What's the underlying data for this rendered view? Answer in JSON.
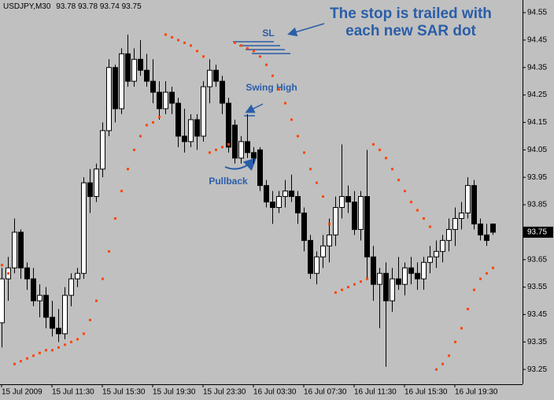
{
  "chart_data": {
    "type": "candlestick",
    "symbol": "USDJPY,M30",
    "categories": [
      "15 Jul 2009",
      null,
      null,
      null,
      null,
      null,
      null,
      null,
      "15 Jul 11:30",
      null,
      null,
      null,
      null,
      null,
      null,
      null,
      "15 Jul 15:30",
      null,
      null,
      null,
      null,
      null,
      null,
      null,
      "15 Jul 19:30",
      null,
      null,
      null,
      null,
      null,
      null,
      null,
      "15 Jul 23:30",
      null,
      null,
      null,
      null,
      null,
      null,
      null,
      "16 Jul 03:30",
      null,
      null,
      null,
      null,
      null,
      null,
      null,
      "16 Jul 07:30",
      null,
      null,
      null,
      null,
      null,
      null,
      null,
      "16 Jul 11:30",
      null,
      null,
      null,
      null,
      null,
      null,
      null,
      "16 Jul 15:30",
      null,
      null,
      null,
      null,
      null,
      null,
      null,
      "16 Jul 19:30",
      null,
      null,
      null,
      null,
      null,
      null
    ],
    "open": [
      93.42,
      93.58,
      93.62,
      93.75,
      93.62,
      93.58,
      93.5,
      93.52,
      93.44,
      93.4,
      93.38,
      93.52,
      93.58,
      93.6,
      93.93,
      93.88,
      93.98,
      94.12,
      94.35,
      94.2,
      94.4,
      94.3,
      94.38,
      94.34,
      94.3,
      94.26,
      94.2,
      94.26,
      94.22,
      94.1,
      94.08,
      94.16,
      94.1,
      94.28,
      94.34,
      94.3,
      94.22,
      94.14,
      94.02,
      94.08,
      94.04,
      94.05,
      93.92,
      93.86,
      93.84,
      93.88,
      93.9,
      93.88,
      93.82,
      93.72,
      93.6,
      93.66,
      93.7,
      93.74,
      93.84,
      93.88,
      93.86,
      93.76,
      93.88,
      93.66,
      93.56,
      93.6,
      93.5,
      93.58,
      93.56,
      93.62,
      93.6,
      93.58,
      93.64,
      93.66,
      93.68,
      93.72,
      93.76,
      93.8,
      93.82,
      93.92,
      93.78,
      93.74,
      93.78
    ],
    "high": [
      93.62,
      93.66,
      93.8,
      93.76,
      93.64,
      93.62,
      93.56,
      93.55,
      93.5,
      93.47,
      93.55,
      93.6,
      93.62,
      93.95,
      93.98,
      94.0,
      94.15,
      94.38,
      94.36,
      94.42,
      94.47,
      94.42,
      94.45,
      94.4,
      94.38,
      94.3,
      94.3,
      94.28,
      94.24,
      94.2,
      94.18,
      94.18,
      94.3,
      94.38,
      94.36,
      94.32,
      94.24,
      94.16,
      94.1,
      94.18,
      94.06,
      94.06,
      93.94,
      93.9,
      93.9,
      93.94,
      93.96,
      93.9,
      93.84,
      93.74,
      93.68,
      93.74,
      93.8,
      93.88,
      94.07,
      93.92,
      93.9,
      93.9,
      94.05,
      93.7,
      93.62,
      93.64,
      93.62,
      93.66,
      93.64,
      93.66,
      93.64,
      93.66,
      93.7,
      93.72,
      93.74,
      93.8,
      93.84,
      93.86,
      93.95,
      93.94,
      93.8,
      93.78,
      93.78
    ],
    "low": [
      93.33,
      93.5,
      93.6,
      93.58,
      93.54,
      93.48,
      93.44,
      93.4,
      93.37,
      93.35,
      93.36,
      93.48,
      93.55,
      93.58,
      93.82,
      93.86,
      93.95,
      94.1,
      94.15,
      94.18,
      94.28,
      94.28,
      94.32,
      94.28,
      94.22,
      94.16,
      94.18,
      94.18,
      94.06,
      94.04,
      94.06,
      94.05,
      94.08,
      94.22,
      94.28,
      94.18,
      94.04,
      94.0,
      94.0,
      94.02,
      94.0,
      93.9,
      93.84,
      93.78,
      93.82,
      93.84,
      93.86,
      93.78,
      93.68,
      93.58,
      93.56,
      93.62,
      93.64,
      93.7,
      93.8,
      93.82,
      93.74,
      93.72,
      93.58,
      93.5,
      93.4,
      93.26,
      93.46,
      93.54,
      93.52,
      93.56,
      93.54,
      93.54,
      93.6,
      93.62,
      93.64,
      93.68,
      93.7,
      93.76,
      93.8,
      93.76,
      93.72,
      93.7,
      93.74
    ],
    "close": [
      93.58,
      93.62,
      93.75,
      93.62,
      93.58,
      93.5,
      93.52,
      93.44,
      93.4,
      93.38,
      93.52,
      93.58,
      93.6,
      93.93,
      93.88,
      93.98,
      94.12,
      94.35,
      94.2,
      94.4,
      94.3,
      94.38,
      94.34,
      94.3,
      94.26,
      94.2,
      94.26,
      94.22,
      94.1,
      94.08,
      94.16,
      94.1,
      94.28,
      94.34,
      94.3,
      94.22,
      94.06,
      94.02,
      94.08,
      94.04,
      94.02,
      93.92,
      93.86,
      93.84,
      93.88,
      93.9,
      93.88,
      93.82,
      93.72,
      93.6,
      93.66,
      93.7,
      93.74,
      93.84,
      93.88,
      93.86,
      93.76,
      93.88,
      93.66,
      93.56,
      93.6,
      93.5,
      93.58,
      93.56,
      93.62,
      93.6,
      93.58,
      93.64,
      93.66,
      93.68,
      93.72,
      93.76,
      93.8,
      93.82,
      93.92,
      93.78,
      93.74,
      93.72,
      93.75
    ],
    "sar": [
      93.63,
      93.6,
      93.27,
      93.28,
      93.29,
      93.3,
      93.31,
      93.32,
      93.32,
      93.33,
      93.34,
      93.35,
      93.36,
      93.38,
      93.43,
      93.5,
      93.58,
      93.68,
      93.8,
      93.9,
      93.98,
      94.05,
      94.1,
      94.14,
      94.15,
      94.17,
      94.47,
      94.46,
      94.45,
      94.44,
      94.43,
      94.41,
      94.39,
      94.04,
      94.05,
      94.06,
      94.07,
      94.44,
      94.43,
      94.42,
      94.41,
      94.39,
      94.36,
      94.32,
      94.27,
      94.22,
      94.16,
      94.1,
      94.04,
      93.98,
      93.93,
      93.88,
      93.78,
      93.53,
      93.54,
      93.55,
      93.56,
      93.57,
      93.58,
      94.07,
      94.05,
      94.02,
      93.98,
      93.94,
      93.9,
      93.86,
      93.83,
      93.8,
      93.77,
      93.25,
      93.27,
      93.3,
      93.35,
      93.4,
      93.47,
      93.54,
      93.58,
      93.6,
      93.62
    ],
    "sar_color": "#ff4500",
    "up_color": "#ffffff",
    "down_color": "#000000",
    "ylim": [
      93.196,
      94.596
    ],
    "yticks": [
      94.55,
      94.45,
      94.35,
      94.25,
      94.15,
      94.05,
      93.95,
      93.85,
      93.75,
      93.65,
      93.55,
      93.45,
      93.35,
      93.25
    ],
    "annotations": {
      "stop_note": [
        "The stop is trailed with",
        "each new SAR dot"
      ],
      "sl": "SL",
      "swing_high": "Swing High",
      "pullback": "Pullback"
    }
  }
}
